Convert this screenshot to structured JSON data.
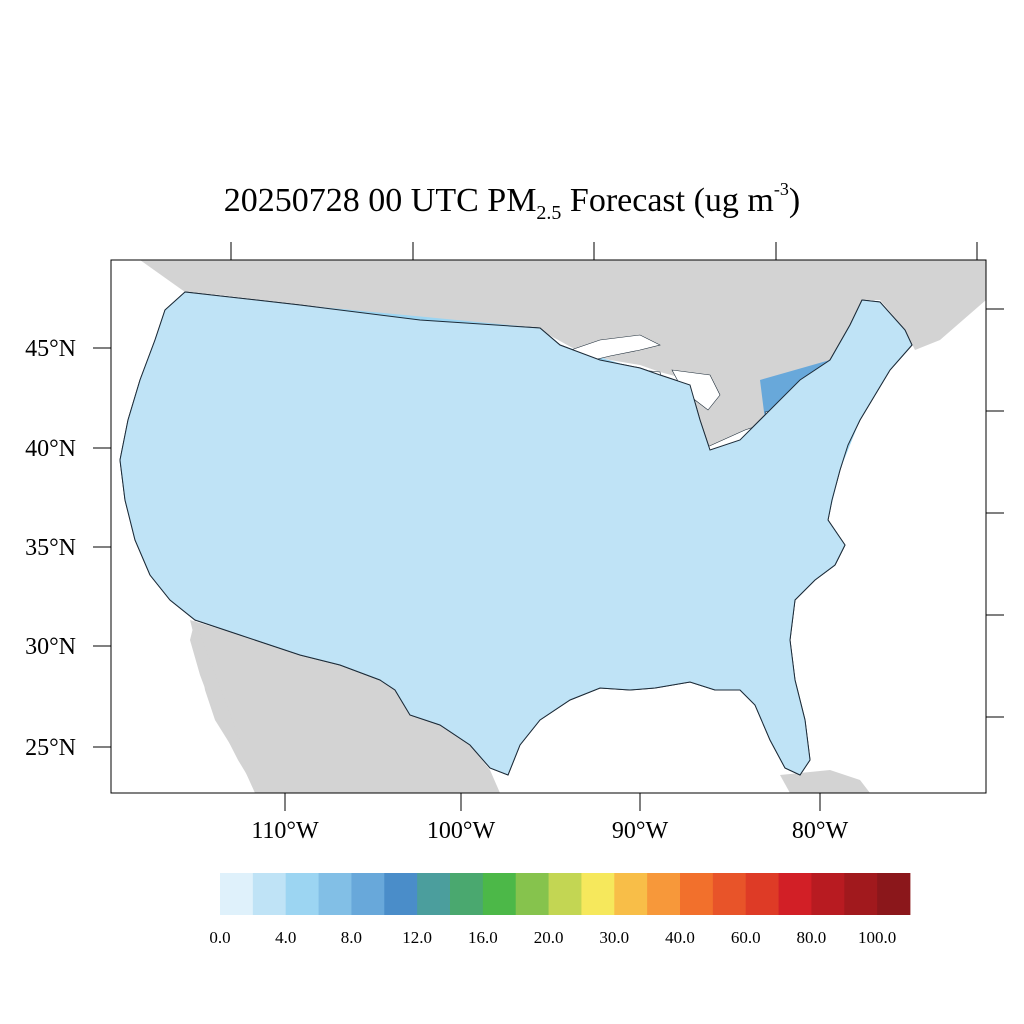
{
  "title": {
    "date_time": "20250728 00 UTC PM",
    "subscript": "2.5",
    "suffix": " Forecast (ug m",
    "superscript": "-3",
    "close": ")"
  },
  "map": {
    "lat_labels": [
      "45°N",
      "40°N",
      "35°N",
      "30°N",
      "25°N"
    ],
    "lon_labels": [
      "110°W",
      "100°W",
      "90°W",
      "80°W"
    ],
    "land_color": "#d3d3d3",
    "water_color": "#ffffff"
  },
  "colorbar": {
    "colors": [
      "#dff1fb",
      "#bfe3f6",
      "#9cd5f2",
      "#82bfe6",
      "#68a8da",
      "#4a8dc9",
      "#4b9e9d",
      "#4aa86f",
      "#4cb848",
      "#86c34d",
      "#c3d653",
      "#f6e85c",
      "#f8be48",
      "#f7983a",
      "#f2702c",
      "#e85429",
      "#de3b26",
      "#d21f26",
      "#b81b21",
      "#a1191d",
      "#8b171b"
    ],
    "labels": [
      "0.0",
      "4.0",
      "8.0",
      "12.0",
      "16.0",
      "20.0",
      "30.0",
      "40.0",
      "60.0",
      "80.0",
      "100.0"
    ]
  }
}
